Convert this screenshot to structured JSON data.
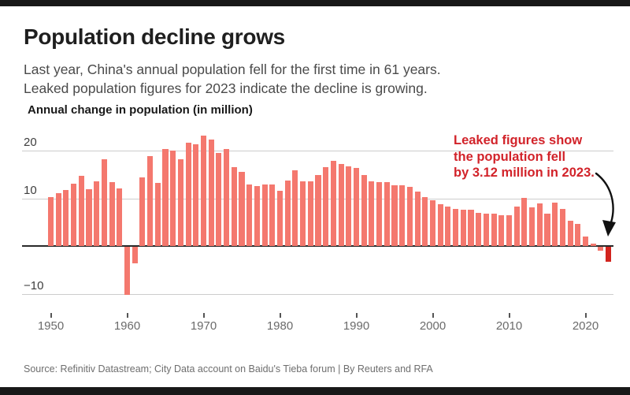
{
  "page": {
    "title": "Population decline grows",
    "subtitle_line1": "Last year, China's annual population fell for the first time in 61 years.",
    "subtitle_line2": "Leaked population figures for 2023 indicate the decline is growing.",
    "source": "Source: Refinitiv Datastream; City Data account on Baidu's Tieba forum | By Reuters and RFA"
  },
  "annotation": {
    "line1": "Leaked figures show",
    "line2": "the population fell",
    "line3": "by 3.12 million in 2023."
  },
  "chart_data": {
    "type": "bar",
    "title": "Annual change in population (in million)",
    "ylim": [
      -13,
      25
    ],
    "grid": true,
    "legend": "none",
    "y_ticks": [
      20,
      10,
      -10
    ],
    "x_ticks": [
      1950,
      1960,
      1970,
      1980,
      1990,
      2000,
      2010,
      2020
    ],
    "highlight_year": 2023,
    "years": [
      1950,
      1951,
      1952,
      1953,
      1954,
      1955,
      1956,
      1957,
      1958,
      1959,
      1960,
      1961,
      1962,
      1963,
      1964,
      1965,
      1966,
      1967,
      1968,
      1969,
      1970,
      1971,
      1972,
      1973,
      1974,
      1975,
      1976,
      1977,
      1978,
      1979,
      1980,
      1981,
      1982,
      1983,
      1984,
      1985,
      1986,
      1987,
      1988,
      1989,
      1990,
      1991,
      1992,
      1993,
      1994,
      1995,
      1996,
      1997,
      1998,
      1999,
      2000,
      2001,
      2002,
      2003,
      2004,
      2005,
      2006,
      2007,
      2008,
      2009,
      2010,
      2011,
      2012,
      2013,
      2014,
      2015,
      2016,
      2017,
      2018,
      2019,
      2020,
      2021,
      2022,
      2023
    ],
    "values": [
      10.29,
      11.04,
      11.82,
      13.14,
      14.7,
      11.99,
      13.63,
      18.25,
      13.41,
      12.13,
      -10.0,
      -3.48,
      14.36,
      18.77,
      13.27,
      20.39,
      20.04,
      18.26,
      21.66,
      21.37,
      23.21,
      22.37,
      19.48,
      20.34,
      16.48,
      15.61,
      12.97,
      12.57,
      12.85,
      12.83,
      11.63,
      13.67,
      15.82,
      13.54,
      13.49,
      14.94,
      16.56,
      17.93,
      17.26,
      16.78,
      16.29,
      14.9,
      13.48,
      13.46,
      13.33,
      12.71,
      12.68,
      12.37,
      11.35,
      10.25,
      9.57,
      8.84,
      8.26,
      7.74,
      7.61,
      7.68,
      6.92,
      6.81,
      6.73,
      6.48,
      6.41,
      8.2,
      10.1,
      8.1,
      9.0,
      6.8,
      9.1,
      7.8,
      5.3,
      4.7,
      2.0,
      0.5,
      -0.85,
      -3.12
    ],
    "colors": {
      "bar": "#f4786e",
      "highlight_bar": "#d2241e",
      "annotation_text": "#d2232a",
      "gridline": "#cccccc",
      "zero_line": "#2a2a2a",
      "arrow": "#111111"
    }
  }
}
